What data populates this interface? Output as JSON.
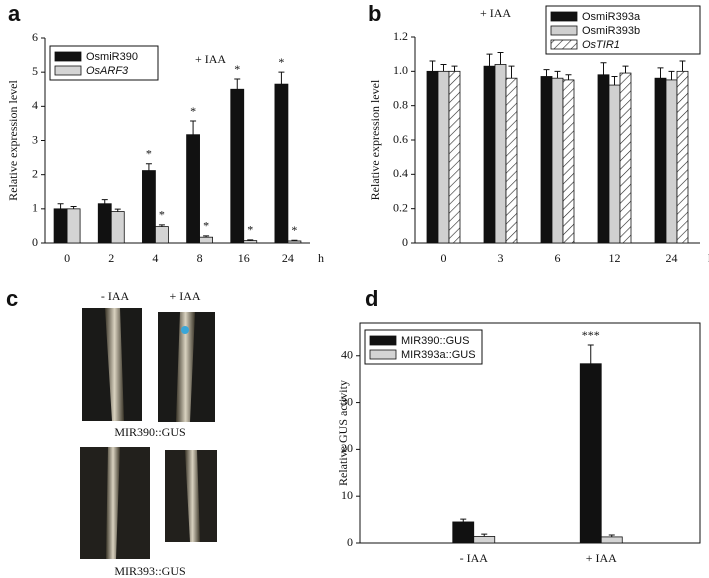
{
  "chart_data": [
    {
      "type": "bar",
      "panel_label": "a",
      "annotation": "+ IAA",
      "y_label": "Relative expression level",
      "x_unit": "h",
      "categories": [
        "0",
        "2",
        "4",
        "8",
        "16",
        "24"
      ],
      "series": [
        {
          "name": "OsmiR390",
          "color": "#111111",
          "values": [
            1.0,
            1.15,
            2.12,
            3.17,
            4.5,
            4.65
          ],
          "errors": [
            0.15,
            0.12,
            0.2,
            0.4,
            0.3,
            0.35
          ],
          "significance": [
            null,
            null,
            "*",
            "*",
            "*",
            "*"
          ]
        },
        {
          "name": "OsARF3",
          "color": "#d4d4d4",
          "values": [
            1.0,
            0.92,
            0.48,
            0.17,
            0.07,
            0.06
          ],
          "errors": [
            0.07,
            0.07,
            0.05,
            0.04,
            0.02,
            0.02
          ],
          "significance": [
            null,
            null,
            "*",
            "*",
            "*",
            "*"
          ]
        }
      ],
      "ylim": [
        0,
        6
      ],
      "yticks": [
        0,
        1,
        2,
        3,
        4,
        5,
        6
      ]
    },
    {
      "type": "bar",
      "panel_label": "b",
      "annotation": "+ IAA",
      "y_label": "Relative expression level",
      "x_unit": "h",
      "categories": [
        "0",
        "3",
        "6",
        "12",
        "24"
      ],
      "series": [
        {
          "name": "OsmiR393a",
          "color": "#111111",
          "values": [
            1.0,
            1.03,
            0.97,
            0.98,
            0.96
          ],
          "errors": [
            0.06,
            0.07,
            0.04,
            0.07,
            0.06
          ]
        },
        {
          "name": "OsmiR393b",
          "color": "#d0d0d0",
          "values": [
            1.0,
            1.04,
            0.96,
            0.92,
            0.95
          ],
          "errors": [
            0.04,
            0.07,
            0.04,
            0.05,
            0.05
          ]
        },
        {
          "name": "OsTIR1",
          "color": "#ffffff",
          "pattern": "hatch",
          "values": [
            1.0,
            0.96,
            0.95,
            0.99,
            1.0
          ],
          "errors": [
            0.03,
            0.07,
            0.03,
            0.04,
            0.06
          ]
        }
      ],
      "ylim": [
        0,
        1.2
      ],
      "yticks": [
        0,
        0.2,
        0.4,
        0.6,
        0.8,
        {
          "value": 1,
          "label": "1.0"
        },
        1.2
      ]
    },
    {
      "type": "bar",
      "panel_label": "d",
      "y_label": "Relative GUS activity",
      "categories": [
        "- IAA",
        "+ IAA"
      ],
      "series": [
        {
          "name": "MIR390::GUS",
          "color": "#111111",
          "values": [
            4.5,
            38.3
          ],
          "errors": [
            0.6,
            4
          ],
          "significance": [
            null,
            "***"
          ]
        },
        {
          "name": "MIR393a::GUS",
          "color": "#d4d4d4",
          "values": [
            1.4,
            1.3
          ],
          "errors": [
            0.5,
            0.4
          ]
        }
      ],
      "ylim": [
        0,
        47
      ],
      "yticks": [
        0,
        10,
        20,
        30,
        40
      ]
    }
  ],
  "photo_panel": {
    "panel_label": "c",
    "conditions": [
      "- IAA",
      "+ IAA"
    ],
    "rows": [
      "MIR390::GUS",
      "MIR393::GUS"
    ]
  }
}
